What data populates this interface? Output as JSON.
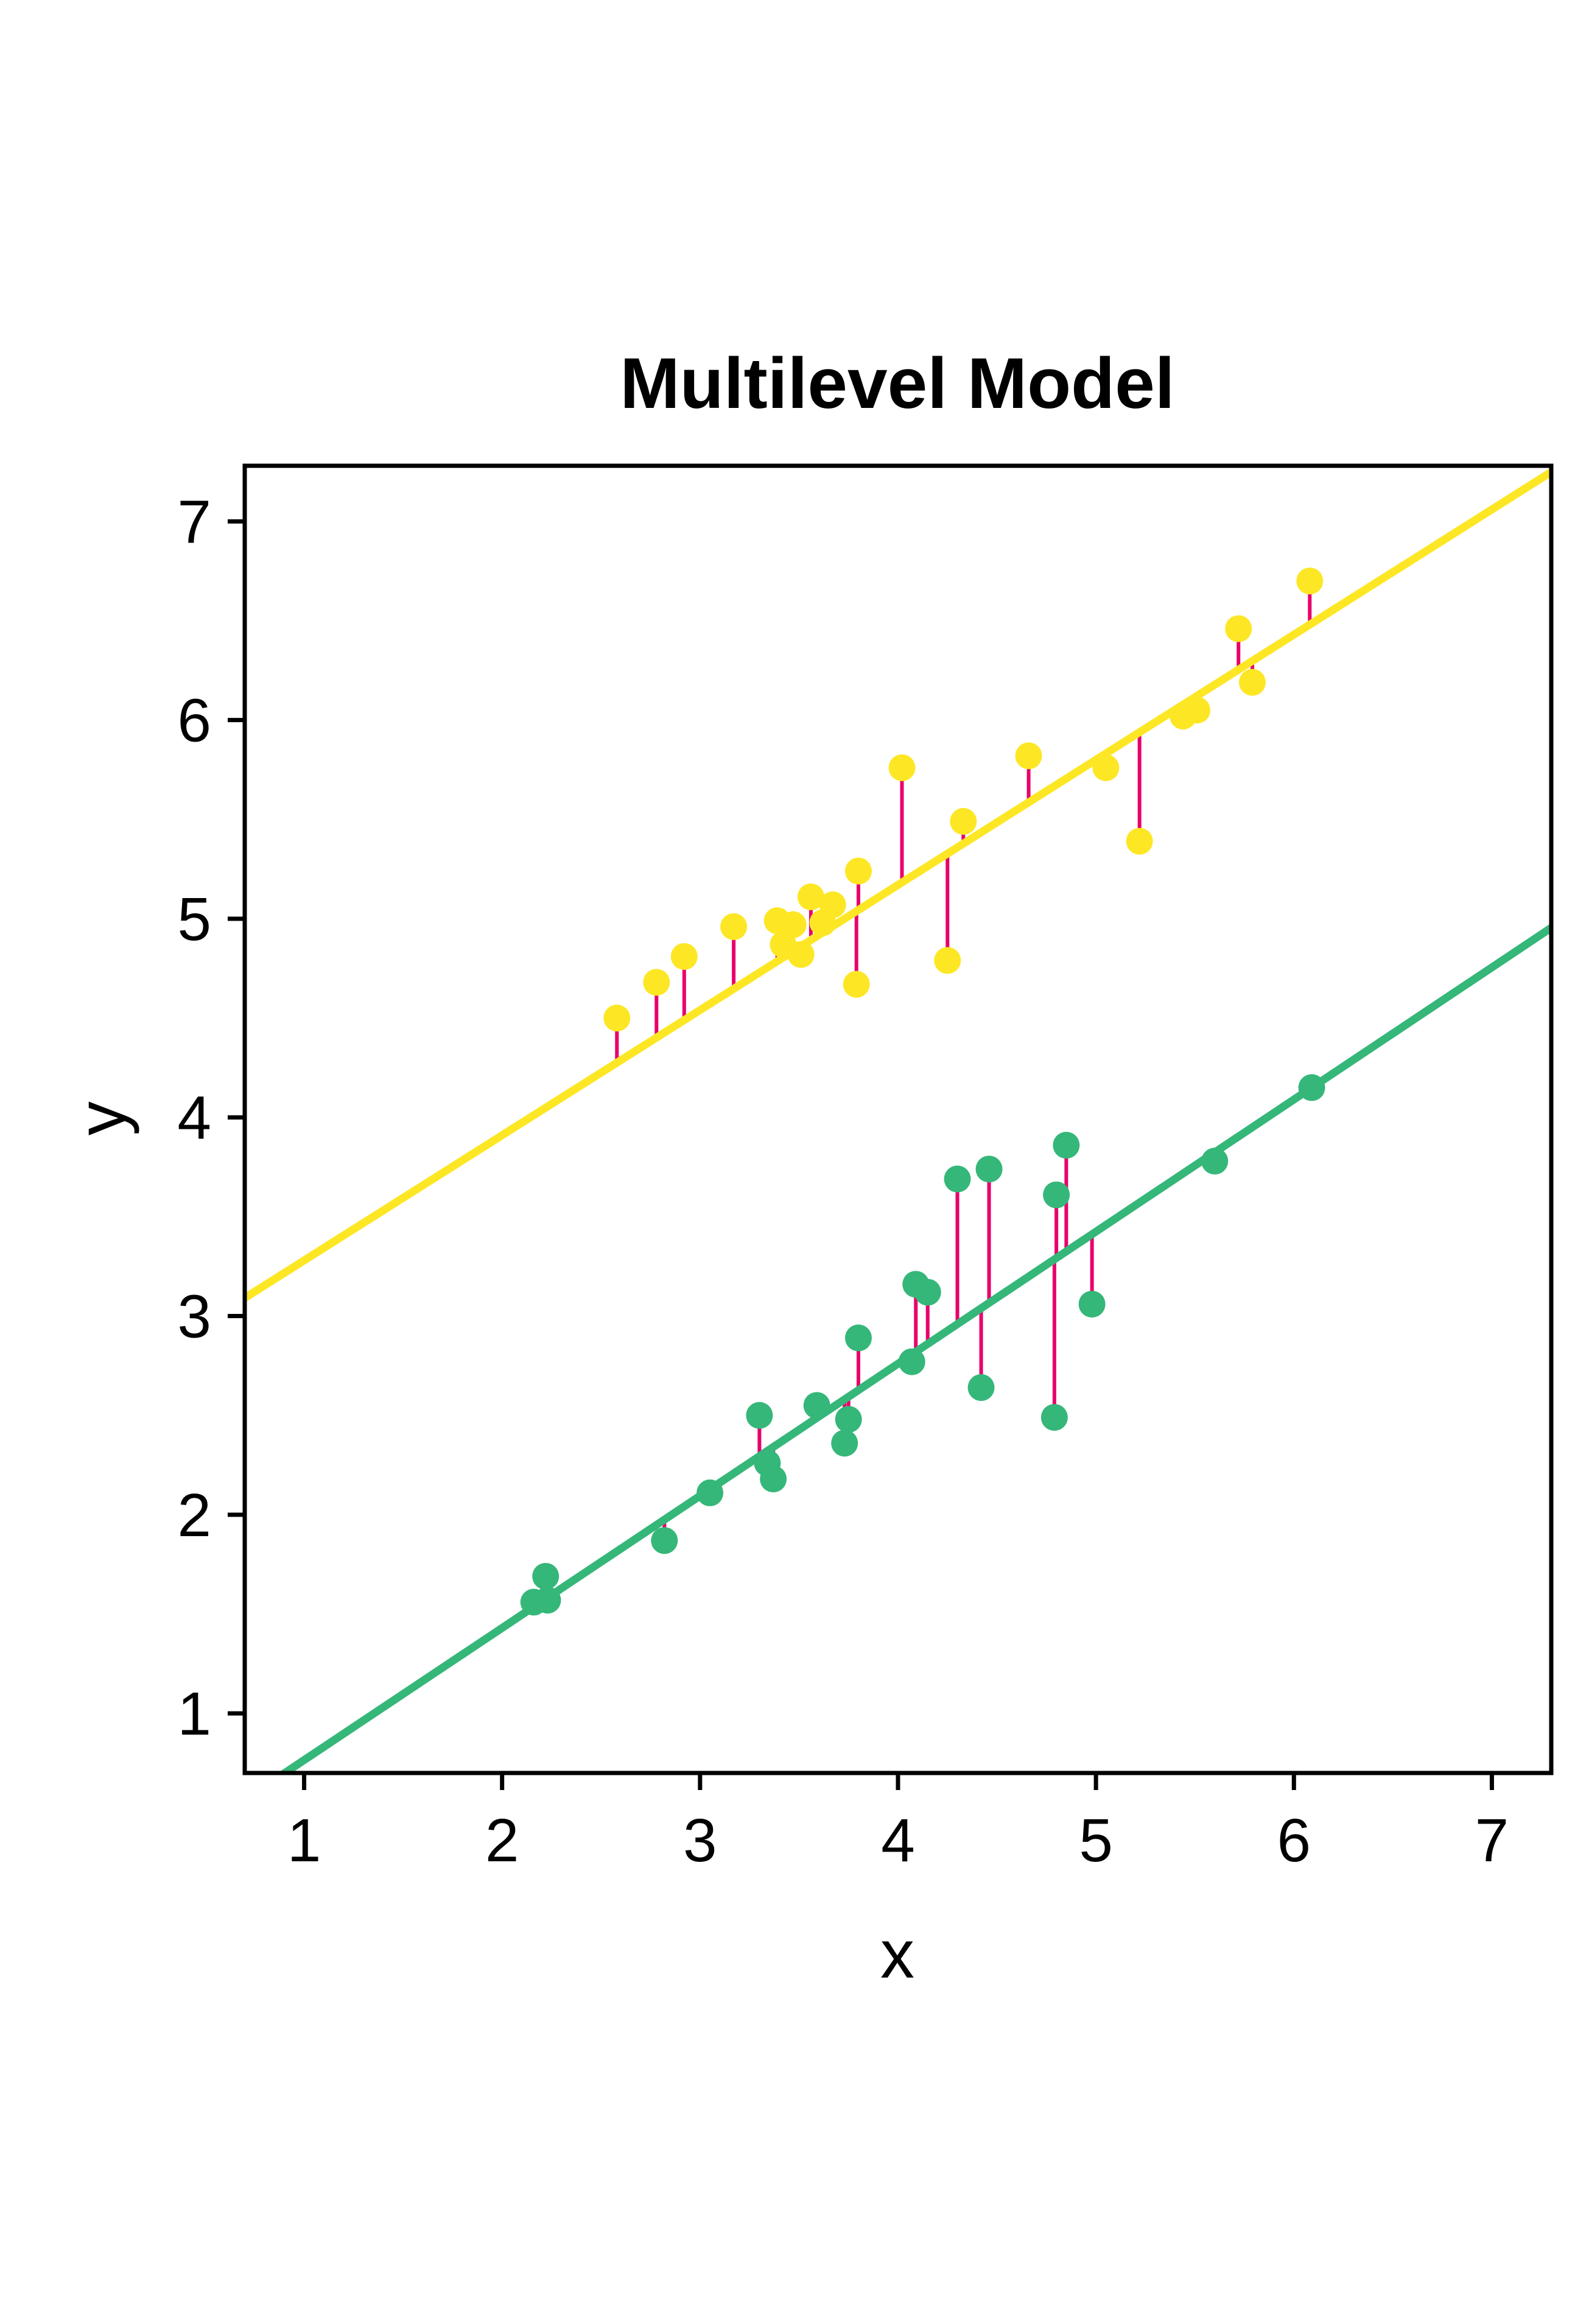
{
  "chart_data": {
    "type": "scatter",
    "title": "Multilevel Model",
    "xlabel": "x",
    "ylabel": "y",
    "xlim": [
      0.7,
      7.3
    ],
    "ylim": [
      0.7,
      7.28
    ],
    "xticks": [
      "1",
      "2",
      "3",
      "4",
      "5",
      "6",
      "7"
    ],
    "yticks": [
      "1",
      "2",
      "3",
      "4",
      "5",
      "6",
      "7"
    ],
    "grid": false,
    "legend": "none",
    "residual_color": "#e8006b",
    "series": [
      {
        "color": "#fde725",
        "fit_line": {
          "intercept": 2.65,
          "slope": 0.63
        },
        "points": [
          {
            "x": 2.58,
            "y": 4.5
          },
          {
            "x": 2.78,
            "y": 4.68
          },
          {
            "x": 2.92,
            "y": 4.81
          },
          {
            "x": 3.17,
            "y": 4.96
          },
          {
            "x": 3.39,
            "y": 4.99
          },
          {
            "x": 3.42,
            "y": 4.87
          },
          {
            "x": 3.47,
            "y": 4.97
          },
          {
            "x": 3.51,
            "y": 4.82
          },
          {
            "x": 3.56,
            "y": 5.11
          },
          {
            "x": 3.62,
            "y": 4.98
          },
          {
            "x": 3.67,
            "y": 5.07
          },
          {
            "x": 3.79,
            "y": 4.67
          },
          {
            "x": 3.8,
            "y": 5.24
          },
          {
            "x": 4.02,
            "y": 5.76
          },
          {
            "x": 4.25,
            "y": 4.79
          },
          {
            "x": 4.33,
            "y": 5.49
          },
          {
            "x": 4.66,
            "y": 5.82
          },
          {
            "x": 5.05,
            "y": 5.76
          },
          {
            "x": 5.22,
            "y": 5.39
          },
          {
            "x": 5.44,
            "y": 6.02
          },
          {
            "x": 5.51,
            "y": 6.05
          },
          {
            "x": 5.72,
            "y": 6.46
          },
          {
            "x": 5.79,
            "y": 6.19
          },
          {
            "x": 6.08,
            "y": 6.7
          }
        ]
      },
      {
        "color": "#35b779",
        "fit_line": {
          "intercept": 0.1,
          "slope": 0.665
        },
        "points": [
          {
            "x": 2.16,
            "y": 1.56
          },
          {
            "x": 2.22,
            "y": 1.69
          },
          {
            "x": 2.23,
            "y": 1.57
          },
          {
            "x": 2.82,
            "y": 1.87
          },
          {
            "x": 3.05,
            "y": 2.11
          },
          {
            "x": 3.3,
            "y": 2.5
          },
          {
            "x": 3.34,
            "y": 2.26
          },
          {
            "x": 3.37,
            "y": 2.18
          },
          {
            "x": 3.59,
            "y": 2.55
          },
          {
            "x": 3.73,
            "y": 2.36
          },
          {
            "x": 3.75,
            "y": 2.48
          },
          {
            "x": 3.8,
            "y": 2.89
          },
          {
            "x": 4.07,
            "y": 2.77
          },
          {
            "x": 4.09,
            "y": 3.16
          },
          {
            "x": 4.15,
            "y": 3.12
          },
          {
            "x": 4.3,
            "y": 3.69
          },
          {
            "x": 4.42,
            "y": 2.64
          },
          {
            "x": 4.46,
            "y": 3.74
          },
          {
            "x": 4.79,
            "y": 2.49
          },
          {
            "x": 4.8,
            "y": 3.61
          },
          {
            "x": 4.85,
            "y": 3.86
          },
          {
            "x": 4.98,
            "y": 3.06
          },
          {
            "x": 5.6,
            "y": 3.78
          },
          {
            "x": 6.09,
            "y": 4.15
          }
        ]
      }
    ]
  }
}
